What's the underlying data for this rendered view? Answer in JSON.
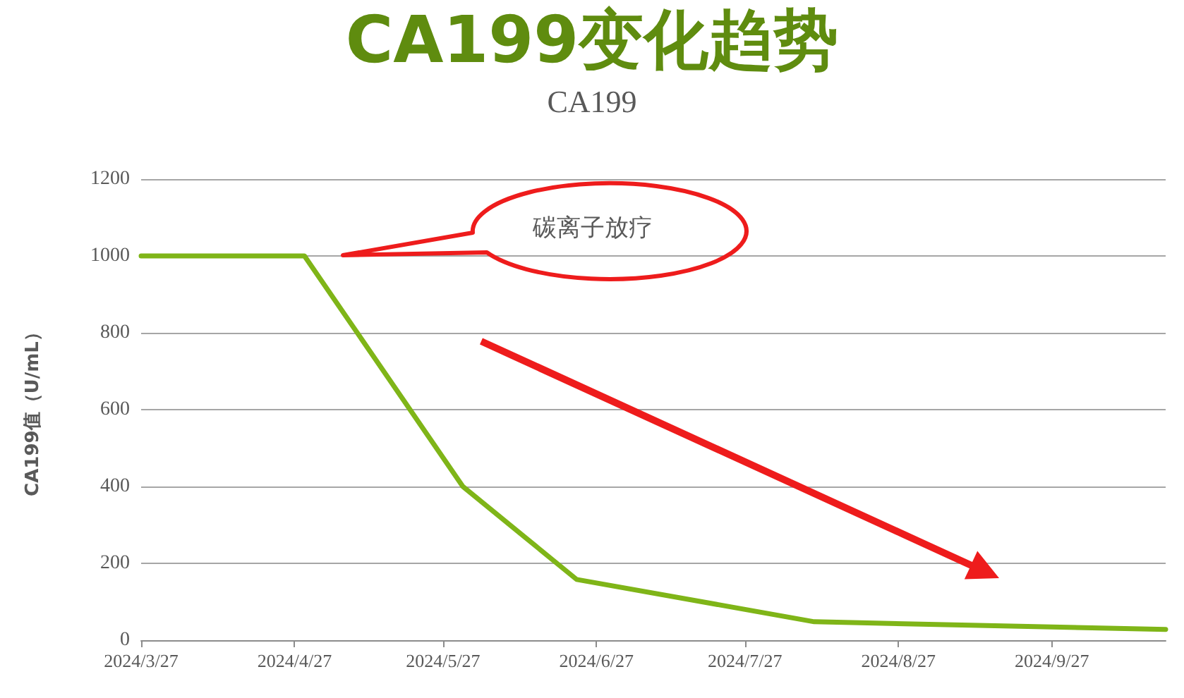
{
  "chart_data": {
    "type": "line",
    "title": "CA199变化趋势",
    "subtitle": "CA199",
    "ylabel": "CA199值（U/mL）",
    "x": [
      "2024-03-27",
      "2024-04-29",
      "2024-05-31",
      "2024-06-23",
      "2024-08-10",
      "2024-10-20"
    ],
    "series": [
      {
        "color": "#7fb518",
        "values": [
          1000,
          1000,
          400,
          158,
          48,
          28
        ]
      }
    ],
    "xlim": [
      "2024-03-27",
      "2024-10-20"
    ],
    "xticks": [
      {
        "value": "2024-03-27",
        "label": "2024/3/27"
      },
      {
        "value": "2024-04-27",
        "label": "2024/4/27"
      },
      {
        "value": "2024-05-27",
        "label": "2024/5/27"
      },
      {
        "value": "2024-06-27",
        "label": "2024/6/27"
      },
      {
        "value": "2024-07-27",
        "label": "2024/7/27"
      },
      {
        "value": "2024-08-27",
        "label": "2024/8/27"
      },
      {
        "value": "2024-09-27",
        "label": "2024/9/27"
      }
    ],
    "ylim": [
      0,
      1200
    ],
    "yticks": [
      0,
      200,
      400,
      600,
      800,
      1000,
      1200
    ],
    "grid": "y",
    "marker": "none",
    "line_style": "solid",
    "annotations": [
      "碳离子放疗"
    ]
  }
}
